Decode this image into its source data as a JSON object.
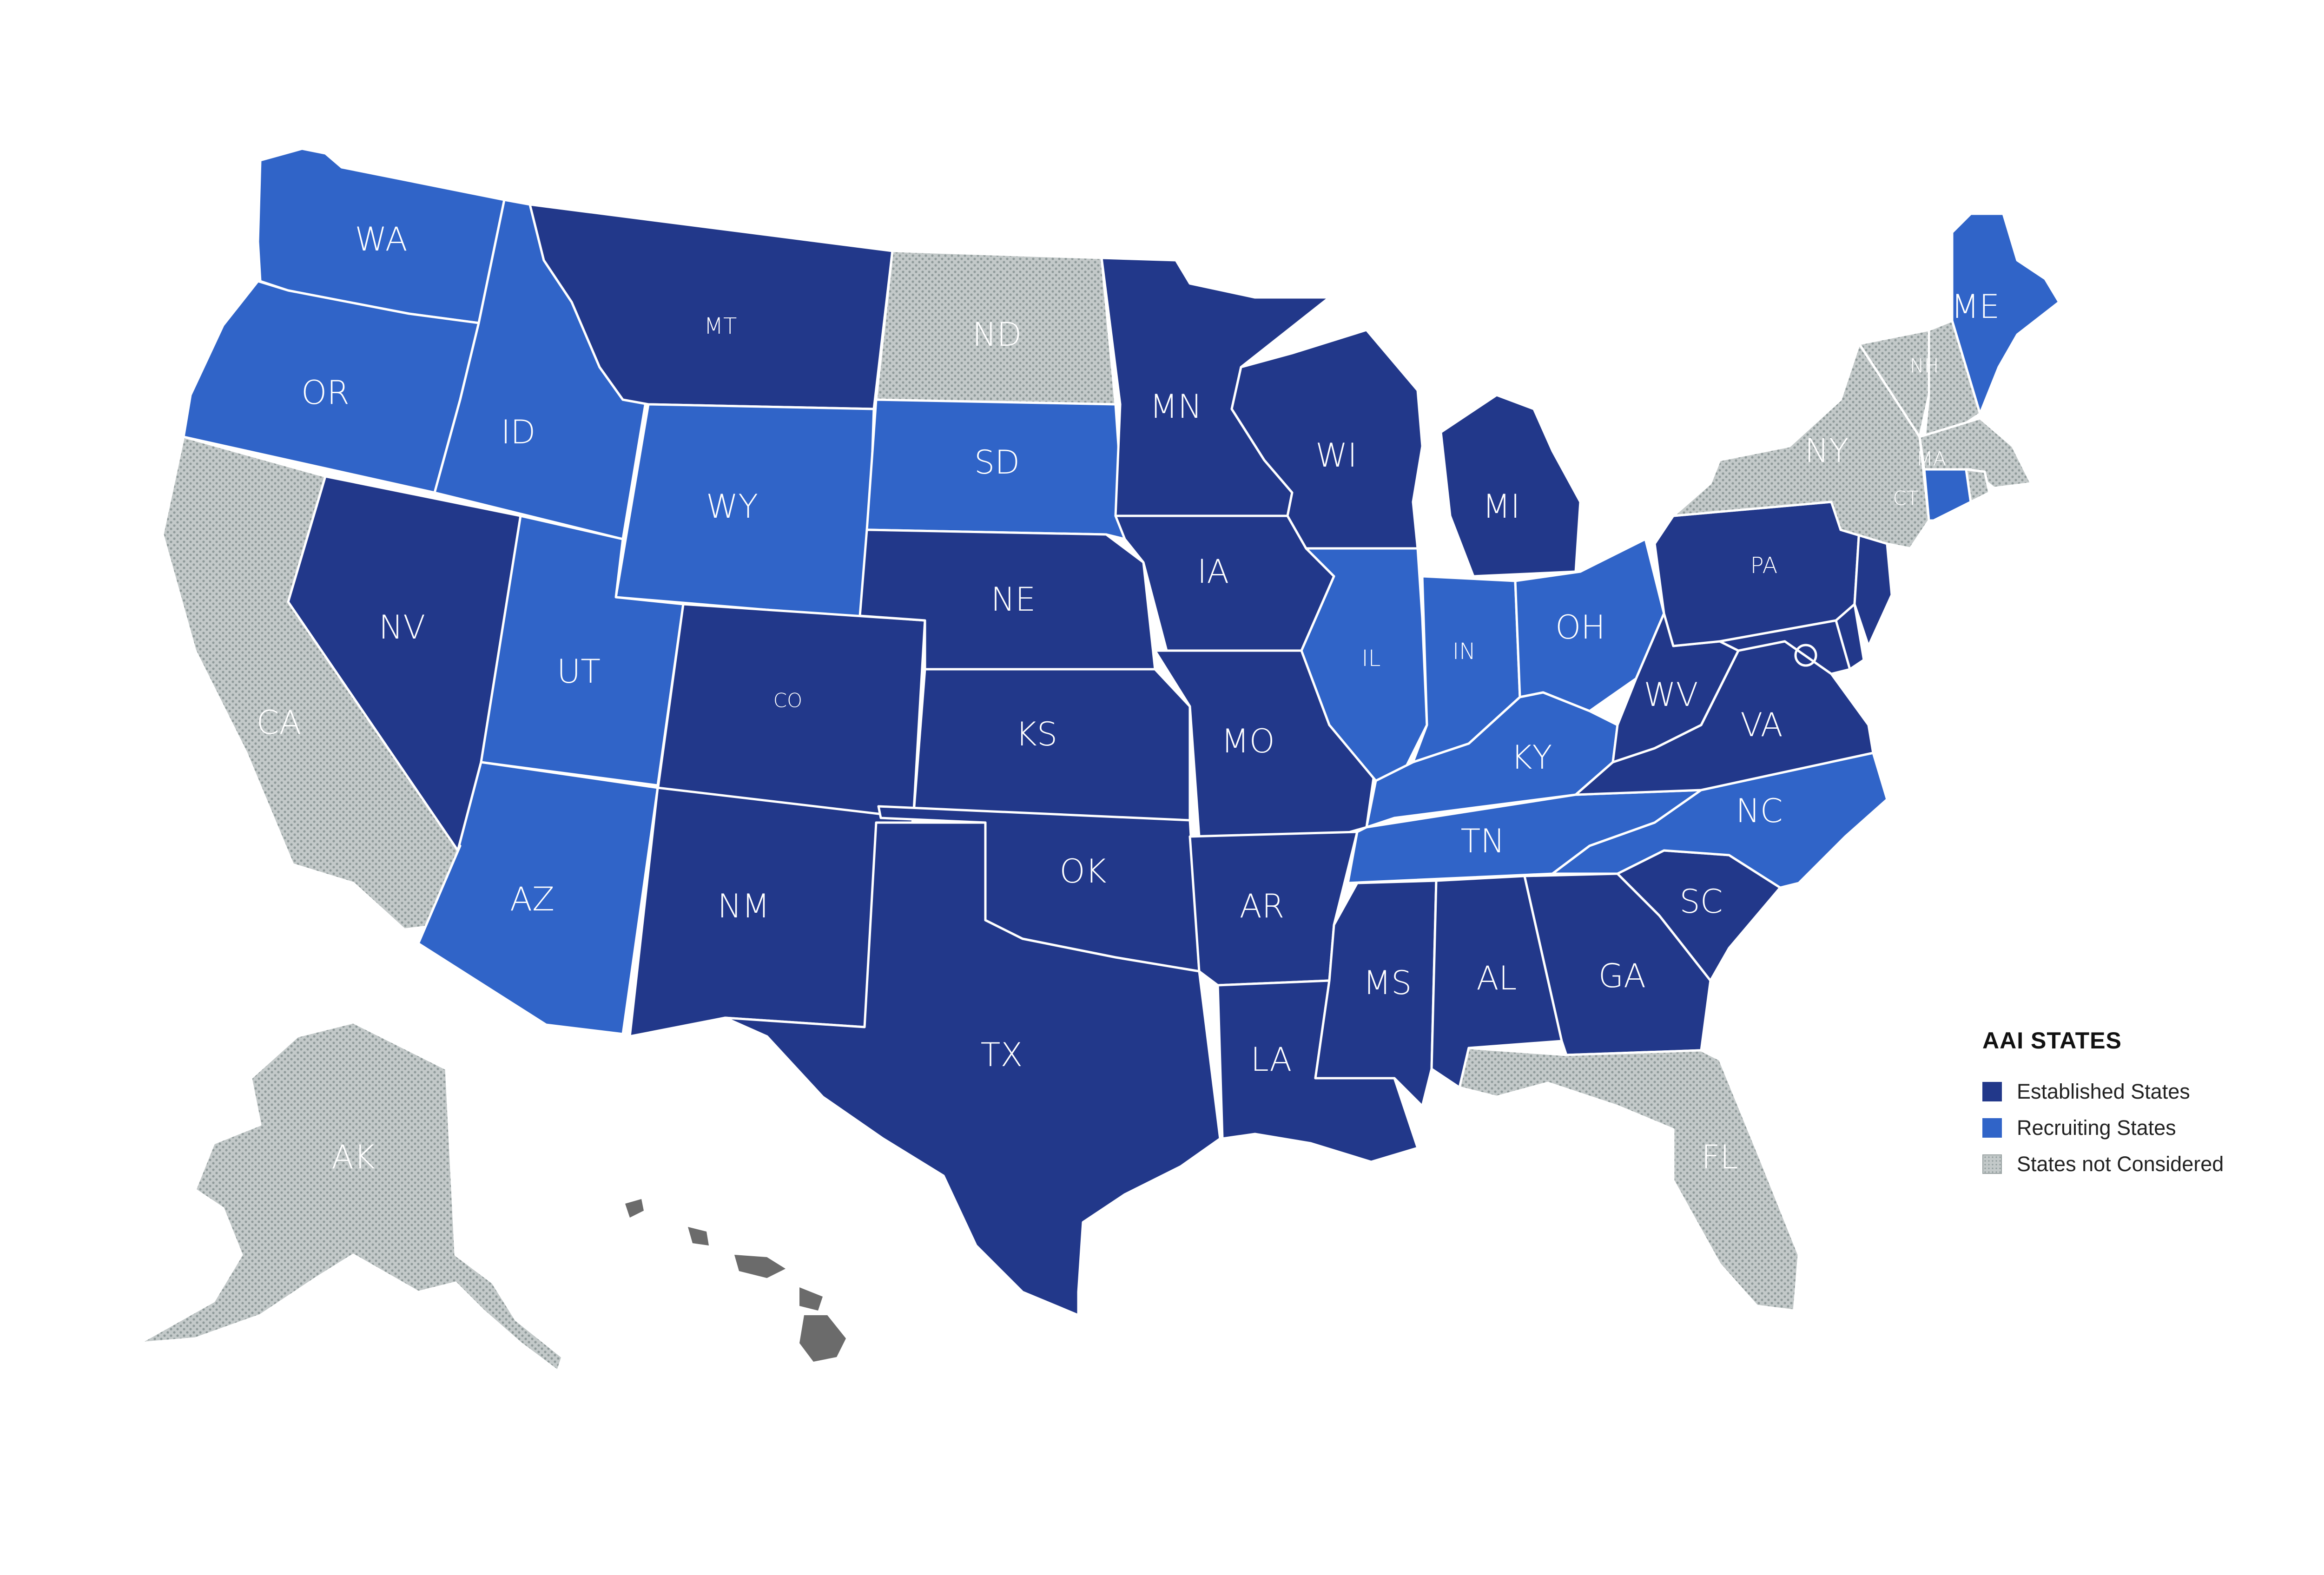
{
  "colors": {
    "established": "#22388a",
    "recruiting": "#3064c8",
    "not_considered": "#c3c9c9",
    "hawaii": "#6b6b6b",
    "border": "#ffffff"
  },
  "legend": {
    "title": "AAI STATES",
    "items": [
      {
        "key": "established",
        "label": "Established States"
      },
      {
        "key": "recruiting",
        "label": "Recruiting States"
      },
      {
        "key": "not_considered",
        "label": "States not Considered"
      }
    ]
  },
  "labels": {
    "WA": "WA",
    "OR": "OR",
    "ID": "ID",
    "MT": "MT",
    "WY": "WY",
    "NV": "NV",
    "UT": "UT",
    "CO": "CO",
    "AZ": "AZ",
    "NM": "NM",
    "CA": "CA",
    "ND": "ND",
    "SD": "SD",
    "NE": "NE",
    "KS": "KS",
    "OK": "OK",
    "TX": "TX",
    "MN": "MN",
    "IA": "IA",
    "MO": "MO",
    "AR": "AR",
    "LA": "LA",
    "WI": "WI",
    "IL": "IL",
    "MI": "MI",
    "IN": "IN",
    "OH": "OH",
    "KY": "KY",
    "TN": "TN",
    "MS": "MS",
    "AL": "AL",
    "GA": "GA",
    "FL": "FL",
    "SC": "SC",
    "NC": "NC",
    "VA": "VA",
    "WV": "WV",
    "PA": "PA",
    "NY": "NY",
    "ME": "ME",
    "NH": "NH",
    "MA": "MA",
    "CT": "CT",
    "AK": "AK"
  },
  "map_data": {
    "type": "choropleth",
    "categories": {
      "established": [
        "MT",
        "NV",
        "CO",
        "NM",
        "NE",
        "KS",
        "OK",
        "TX",
        "MN",
        "IA",
        "MO",
        "AR",
        "LA",
        "WI",
        "MI",
        "MS",
        "AL",
        "GA",
        "SC",
        "VA",
        "WV",
        "PA",
        "NJ",
        "DE",
        "MD"
      ],
      "recruiting": [
        "WA",
        "OR",
        "ID",
        "WY",
        "UT",
        "AZ",
        "SD",
        "IL",
        "IN",
        "OH",
        "KY",
        "TN",
        "NC",
        "ME",
        "CT"
      ],
      "not_considered": [
        "CA",
        "ND",
        "FL",
        "NY",
        "VT",
        "NH",
        "MA",
        "RI",
        "AK"
      ]
    }
  }
}
